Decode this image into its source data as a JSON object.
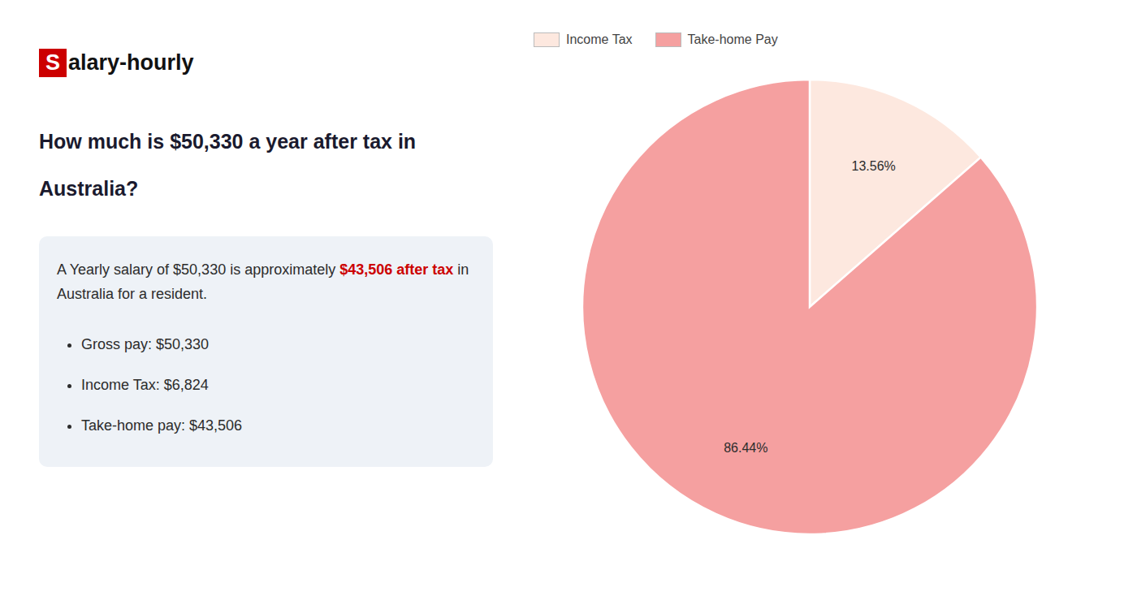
{
  "chart_data": {
    "type": "pie",
    "title": "How much is $50,330 a year after tax in Australia?",
    "categories": [
      "Income Tax",
      "Take-home Pay"
    ],
    "values": [
      13.56,
      86.44
    ],
    "value_labels": [
      "13.56%",
      "86.44%"
    ],
    "colors": [
      "#fde8df",
      "#f5a0a0"
    ],
    "data_labels": true,
    "legend": "top",
    "annotations": [
      [
        {
          "text": "S",
          "color": "#cc0000"
        },
        {
          "text": "alary-hourly"
        }
      ],
      [
        {
          "text": "A Yearly salary of $50,330 is approximately "
        },
        {
          "text": "$43,506 after tax",
          "color": "#cc0000"
        },
        {
          "text": " in"
        }
      ],
      [
        {
          "text": "Australia for a resident."
        }
      ],
      [
        {
          "text": "Gross pay: $50,330"
        }
      ],
      [
        {
          "text": "Income Tax: $6,824"
        }
      ],
      [
        {
          "text": "Take-home pay: $43,506"
        }
      ]
    ]
  }
}
